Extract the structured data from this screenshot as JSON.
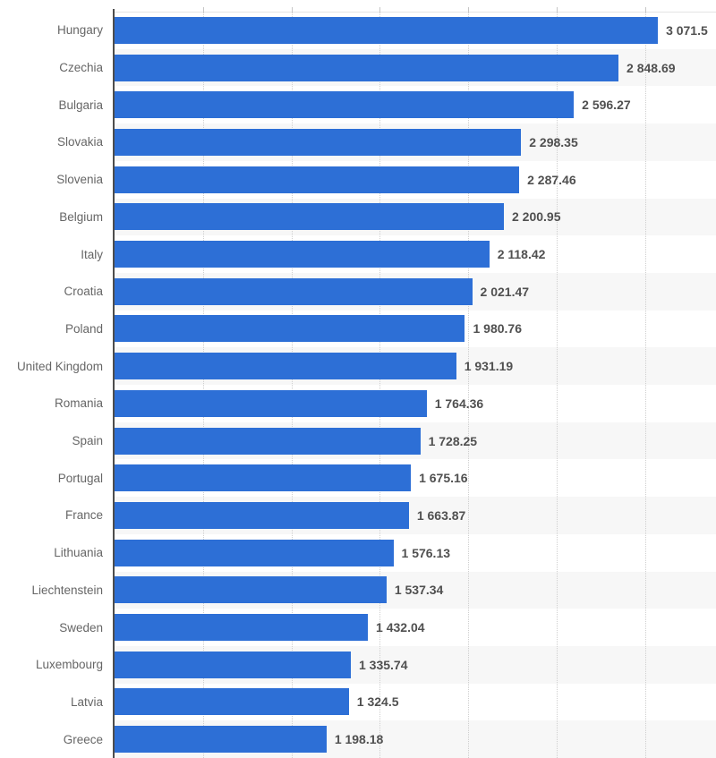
{
  "chart_data": {
    "type": "bar",
    "orientation": "horizontal",
    "title": "",
    "xlabel": "",
    "ylabel": "",
    "categories": [
      "Hungary",
      "Czechia",
      "Bulgaria",
      "Slovakia",
      "Slovenia",
      "Belgium",
      "Italy",
      "Croatia",
      "Poland",
      "United Kingdom",
      "Romania",
      "Spain",
      "Portugal",
      "France",
      "Lithuania",
      "Liechtenstein",
      "Sweden",
      "Luxembourg",
      "Latvia",
      "Greece"
    ],
    "values": [
      3071.5,
      2848.69,
      2596.27,
      2298.35,
      2287.46,
      2200.95,
      2118.42,
      2021.47,
      1980.76,
      1931.19,
      1764.36,
      1728.25,
      1675.16,
      1663.87,
      1576.13,
      1537.34,
      1432.04,
      1335.74,
      1324.5,
      1198.18
    ],
    "value_labels": [
      "3 071.5",
      "2 848.69",
      "2 596.27",
      "2 298.35",
      "2 287.46",
      "2 200.95",
      "2 118.42",
      "2 021.47",
      "1 980.76",
      "1 931.19",
      "1 764.36",
      "1 728.25",
      "1 675.16",
      "1 663.87",
      "1 576.13",
      "1 537.34",
      "1 432.04",
      "1 335.74",
      "1 324.5",
      "1 198.18"
    ],
    "xlim": [
      0,
      3400
    ],
    "x_gridlines": [
      500,
      1000,
      1500,
      2000,
      2500,
      3000
    ],
    "grid": "vertical-dotted",
    "legend": "none",
    "colors": {
      "bar": "#2d6fd6",
      "stripe": "#f7f7f7",
      "gridline": "#cfcfcf",
      "tick": "#c6c6c6",
      "plot_top_border": "#e4e4e4",
      "axis_line": "#4d4d4d",
      "category_label": "#666666",
      "value_label": "#505050",
      "background": "#ffffff"
    }
  }
}
